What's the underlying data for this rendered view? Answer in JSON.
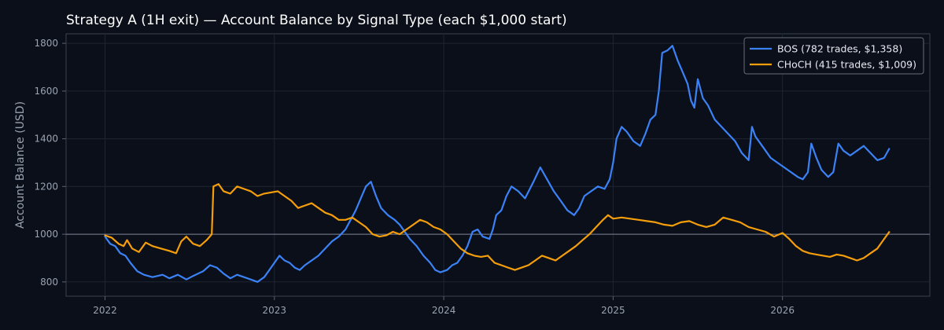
{
  "chart_data": {
    "type": "line",
    "title": "Strategy A (1H exit) — Account Balance by Signal Type (each $1,000 start)",
    "xlabel": "",
    "ylabel": "Account Balance (USD)",
    "x_tick_labels": [
      "2022",
      "2023",
      "2024",
      "2025",
      "2026"
    ],
    "y_ticks": [
      800,
      1000,
      1200,
      1400,
      1600,
      1800
    ],
    "xlim": [
      2021.77,
      2026.87
    ],
    "ylim": [
      740,
      1840
    ],
    "grid": true,
    "baseline": 1000,
    "legend_position": "top-right",
    "series": [
      {
        "name": "BOS (782 trades, $1,358)",
        "color": "#3b82f6",
        "points": [
          [
            2022.0,
            990
          ],
          [
            2022.03,
            960
          ],
          [
            2022.06,
            950
          ],
          [
            2022.09,
            920
          ],
          [
            2022.12,
            910
          ],
          [
            2022.15,
            880
          ],
          [
            2022.19,
            845
          ],
          [
            2022.23,
            830
          ],
          [
            2022.28,
            820
          ],
          [
            2022.34,
            830
          ],
          [
            2022.38,
            815
          ],
          [
            2022.43,
            830
          ],
          [
            2022.48,
            810
          ],
          [
            2022.52,
            825
          ],
          [
            2022.58,
            845
          ],
          [
            2022.62,
            870
          ],
          [
            2022.66,
            860
          ],
          [
            2022.7,
            835
          ],
          [
            2022.74,
            815
          ],
          [
            2022.78,
            830
          ],
          [
            2022.82,
            820
          ],
          [
            2022.86,
            810
          ],
          [
            2022.9,
            800
          ],
          [
            2022.94,
            820
          ],
          [
            2022.97,
            850
          ],
          [
            2023.0,
            880
          ],
          [
            2023.03,
            910
          ],
          [
            2023.06,
            890
          ],
          [
            2023.09,
            880
          ],
          [
            2023.12,
            860
          ],
          [
            2023.15,
            850
          ],
          [
            2023.18,
            870
          ],
          [
            2023.22,
            890
          ],
          [
            2023.26,
            910
          ],
          [
            2023.3,
            940
          ],
          [
            2023.34,
            970
          ],
          [
            2023.38,
            990
          ],
          [
            2023.42,
            1020
          ],
          [
            2023.45,
            1060
          ],
          [
            2023.48,
            1100
          ],
          [
            2023.51,
            1150
          ],
          [
            2023.54,
            1200
          ],
          [
            2023.57,
            1220
          ],
          [
            2023.6,
            1160
          ],
          [
            2023.63,
            1110
          ],
          [
            2023.67,
            1080
          ],
          [
            2023.71,
            1060
          ],
          [
            2023.74,
            1040
          ],
          [
            2023.77,
            1010
          ],
          [
            2023.8,
            980
          ],
          [
            2023.84,
            950
          ],
          [
            2023.88,
            910
          ],
          [
            2023.92,
            880
          ],
          [
            2023.95,
            850
          ],
          [
            2023.98,
            840
          ],
          [
            2024.02,
            850
          ],
          [
            2024.05,
            870
          ],
          [
            2024.08,
            880
          ],
          [
            2024.11,
            910
          ],
          [
            2024.14,
            950
          ],
          [
            2024.17,
            1010
          ],
          [
            2024.2,
            1020
          ],
          [
            2024.23,
            990
          ],
          [
            2024.27,
            980
          ],
          [
            2024.29,
            1020
          ],
          [
            2024.31,
            1080
          ],
          [
            2024.34,
            1100
          ],
          [
            2024.37,
            1160
          ],
          [
            2024.4,
            1200
          ],
          [
            2024.44,
            1180
          ],
          [
            2024.48,
            1150
          ],
          [
            2024.53,
            1220
          ],
          [
            2024.57,
            1280
          ],
          [
            2024.61,
            1230
          ],
          [
            2024.65,
            1180
          ],
          [
            2024.69,
            1140
          ],
          [
            2024.73,
            1100
          ],
          [
            2024.77,
            1080
          ],
          [
            2024.8,
            1110
          ],
          [
            2024.83,
            1160
          ],
          [
            2024.87,
            1180
          ],
          [
            2024.91,
            1200
          ],
          [
            2024.95,
            1190
          ],
          [
            2024.98,
            1230
          ],
          [
            2025.0,
            1300
          ],
          [
            2025.02,
            1400
          ],
          [
            2025.05,
            1450
          ],
          [
            2025.08,
            1430
          ],
          [
            2025.12,
            1390
          ],
          [
            2025.16,
            1370
          ],
          [
            2025.19,
            1420
          ],
          [
            2025.22,
            1480
          ],
          [
            2025.25,
            1500
          ],
          [
            2025.27,
            1600
          ],
          [
            2025.29,
            1760
          ],
          [
            2025.32,
            1770
          ],
          [
            2025.35,
            1790
          ],
          [
            2025.38,
            1730
          ],
          [
            2025.41,
            1680
          ],
          [
            2025.44,
            1630
          ],
          [
            2025.46,
            1560
          ],
          [
            2025.48,
            1530
          ],
          [
            2025.5,
            1650
          ],
          [
            2025.53,
            1570
          ],
          [
            2025.56,
            1540
          ],
          [
            2025.6,
            1480
          ],
          [
            2025.64,
            1450
          ],
          [
            2025.68,
            1420
          ],
          [
            2025.72,
            1390
          ],
          [
            2025.76,
            1340
          ],
          [
            2025.8,
            1310
          ],
          [
            2025.82,
            1450
          ],
          [
            2025.84,
            1410
          ],
          [
            2025.87,
            1380
          ],
          [
            2025.9,
            1350
          ],
          [
            2025.93,
            1320
          ],
          [
            2025.97,
            1300
          ],
          [
            2026.01,
            1280
          ],
          [
            2026.05,
            1260
          ],
          [
            2026.09,
            1240
          ],
          [
            2026.12,
            1230
          ],
          [
            2026.15,
            1260
          ],
          [
            2026.17,
            1380
          ],
          [
            2026.2,
            1320
          ],
          [
            2026.23,
            1270
          ],
          [
            2026.27,
            1240
          ],
          [
            2026.3,
            1260
          ],
          [
            2026.33,
            1380
          ],
          [
            2026.36,
            1350
          ],
          [
            2026.4,
            1330
          ],
          [
            2026.44,
            1350
          ],
          [
            2026.48,
            1370
          ],
          [
            2026.52,
            1340
          ],
          [
            2026.56,
            1310
          ],
          [
            2026.6,
            1320
          ],
          [
            2026.63,
            1358
          ]
        ]
      },
      {
        "name": "CHoCH (415 trades, $1,009)",
        "color": "#f59e0b",
        "points": [
          [
            2022.0,
            995
          ],
          [
            2022.04,
            985
          ],
          [
            2022.08,
            960
          ],
          [
            2022.11,
            950
          ],
          [
            2022.13,
            975
          ],
          [
            2022.16,
            940
          ],
          [
            2022.2,
            925
          ],
          [
            2022.24,
            965
          ],
          [
            2022.28,
            950
          ],
          [
            2022.33,
            940
          ],
          [
            2022.38,
            930
          ],
          [
            2022.42,
            920
          ],
          [
            2022.45,
            970
          ],
          [
            2022.48,
            990
          ],
          [
            2022.52,
            960
          ],
          [
            2022.56,
            950
          ],
          [
            2022.6,
            975
          ],
          [
            2022.63,
            1000
          ],
          [
            2022.64,
            1200
          ],
          [
            2022.67,
            1210
          ],
          [
            2022.7,
            1180
          ],
          [
            2022.74,
            1170
          ],
          [
            2022.78,
            1200
          ],
          [
            2022.82,
            1190
          ],
          [
            2022.86,
            1180
          ],
          [
            2022.9,
            1160
          ],
          [
            2022.94,
            1170
          ],
          [
            2022.98,
            1175
          ],
          [
            2023.02,
            1180
          ],
          [
            2023.06,
            1160
          ],
          [
            2023.1,
            1140
          ],
          [
            2023.14,
            1110
          ],
          [
            2023.18,
            1120
          ],
          [
            2023.22,
            1130
          ],
          [
            2023.26,
            1110
          ],
          [
            2023.3,
            1090
          ],
          [
            2023.34,
            1080
          ],
          [
            2023.38,
            1060
          ],
          [
            2023.42,
            1060
          ],
          [
            2023.46,
            1070
          ],
          [
            2023.5,
            1050
          ],
          [
            2023.54,
            1030
          ],
          [
            2023.58,
            1000
          ],
          [
            2023.62,
            990
          ],
          [
            2023.66,
            995
          ],
          [
            2023.7,
            1010
          ],
          [
            2023.74,
            1000
          ],
          [
            2023.78,
            1020
          ],
          [
            2023.82,
            1040
          ],
          [
            2023.86,
            1060
          ],
          [
            2023.9,
            1050
          ],
          [
            2023.94,
            1030
          ],
          [
            2023.98,
            1020
          ],
          [
            2024.02,
            1000
          ],
          [
            2024.06,
            970
          ],
          [
            2024.1,
            940
          ],
          [
            2024.14,
            920
          ],
          [
            2024.18,
            910
          ],
          [
            2024.22,
            905
          ],
          [
            2024.26,
            910
          ],
          [
            2024.3,
            880
          ],
          [
            2024.34,
            870
          ],
          [
            2024.38,
            860
          ],
          [
            2024.42,
            850
          ],
          [
            2024.46,
            860
          ],
          [
            2024.5,
            870
          ],
          [
            2024.54,
            890
          ],
          [
            2024.58,
            910
          ],
          [
            2024.62,
            900
          ],
          [
            2024.66,
            890
          ],
          [
            2024.7,
            910
          ],
          [
            2024.74,
            930
          ],
          [
            2024.78,
            950
          ],
          [
            2024.82,
            975
          ],
          [
            2024.86,
            1000
          ],
          [
            2024.9,
            1030
          ],
          [
            2024.94,
            1060
          ],
          [
            2024.97,
            1080
          ],
          [
            2025.0,
            1065
          ],
          [
            2025.05,
            1070
          ],
          [
            2025.1,
            1065
          ],
          [
            2025.15,
            1060
          ],
          [
            2025.2,
            1055
          ],
          [
            2025.25,
            1050
          ],
          [
            2025.3,
            1040
          ],
          [
            2025.35,
            1035
          ],
          [
            2025.4,
            1050
          ],
          [
            2025.45,
            1055
          ],
          [
            2025.5,
            1040
          ],
          [
            2025.55,
            1030
          ],
          [
            2025.6,
            1040
          ],
          [
            2025.65,
            1070
          ],
          [
            2025.7,
            1060
          ],
          [
            2025.75,
            1050
          ],
          [
            2025.8,
            1030
          ],
          [
            2025.85,
            1020
          ],
          [
            2025.9,
            1010
          ],
          [
            2025.95,
            990
          ],
          [
            2026.0,
            1005
          ],
          [
            2026.04,
            980
          ],
          [
            2026.08,
            950
          ],
          [
            2026.12,
            930
          ],
          [
            2026.16,
            920
          ],
          [
            2026.2,
            915
          ],
          [
            2026.24,
            910
          ],
          [
            2026.28,
            905
          ],
          [
            2026.32,
            915
          ],
          [
            2026.36,
            910
          ],
          [
            2026.4,
            900
          ],
          [
            2026.44,
            890
          ],
          [
            2026.48,
            900
          ],
          [
            2026.52,
            920
          ],
          [
            2026.56,
            940
          ],
          [
            2026.6,
            980
          ],
          [
            2026.63,
            1009
          ]
        ]
      }
    ]
  }
}
